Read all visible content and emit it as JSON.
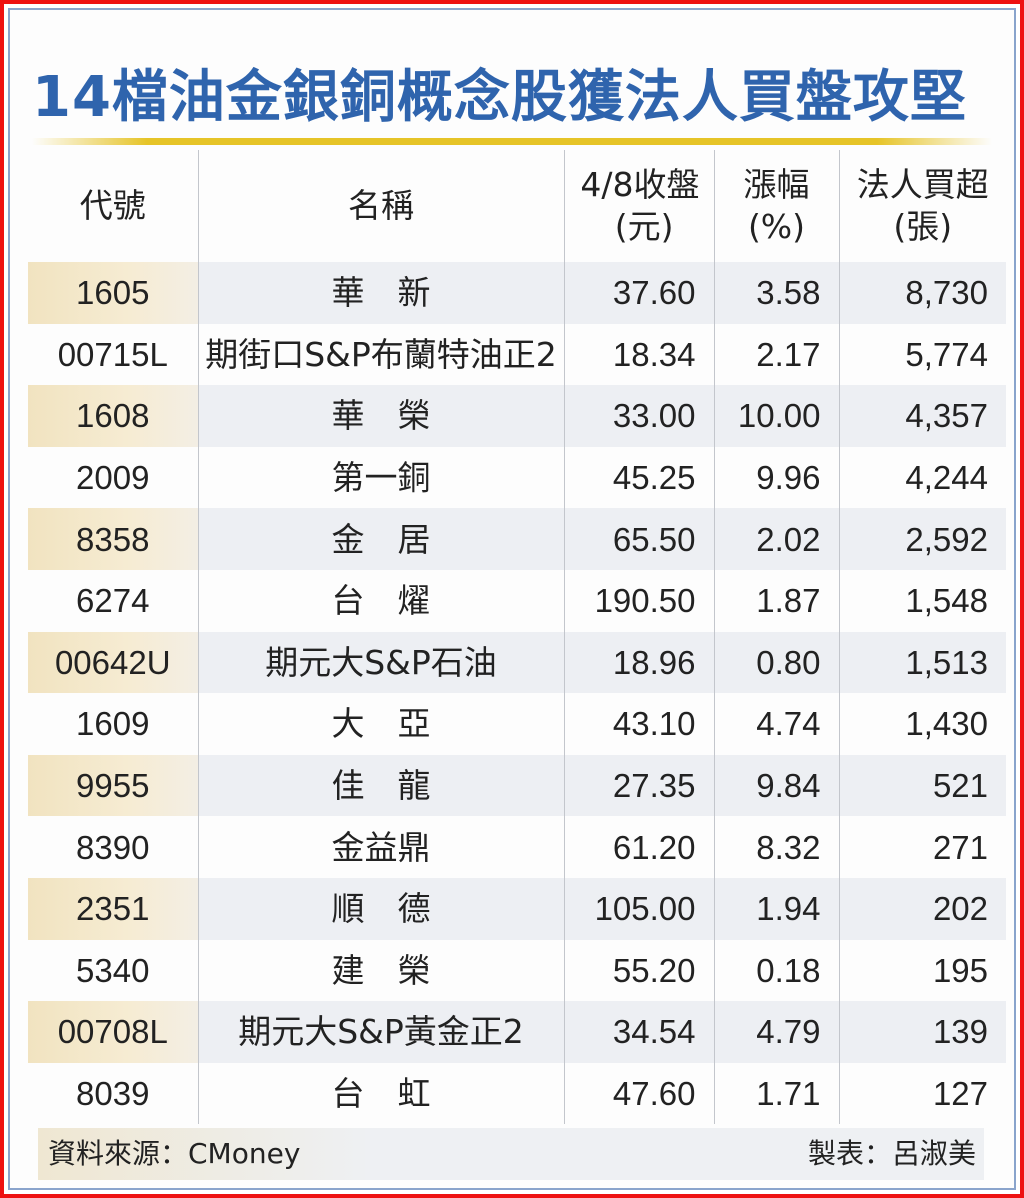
{
  "title": "14檔油金銀銅概念股獲法人買盤攻堅",
  "table": {
    "headers": [
      {
        "line1": "代號",
        "line2": ""
      },
      {
        "line1": "名稱",
        "line2": ""
      },
      {
        "line1": "4/8收盤",
        "line2": "(元)"
      },
      {
        "line1": "漲幅",
        "line2": "(%)"
      },
      {
        "line1": "法人買超",
        "line2": "(張)"
      }
    ],
    "rows": [
      {
        "code": "1605",
        "name": "華　新",
        "close": "37.60",
        "change": "3.58",
        "net_buy": "8,730"
      },
      {
        "code": "00715L",
        "name": "期街口S&P布蘭特油正2",
        "close": "18.34",
        "change": "2.17",
        "net_buy": "5,774"
      },
      {
        "code": "1608",
        "name": "華　榮",
        "close": "33.00",
        "change": "10.00",
        "net_buy": "4,357"
      },
      {
        "code": "2009",
        "name": "第一銅",
        "close": "45.25",
        "change": "9.96",
        "net_buy": "4,244"
      },
      {
        "code": "8358",
        "name": "金　居",
        "close": "65.50",
        "change": "2.02",
        "net_buy": "2,592"
      },
      {
        "code": "6274",
        "name": "台　燿",
        "close": "190.50",
        "change": "1.87",
        "net_buy": "1,548"
      },
      {
        "code": "00642U",
        "name": "期元大S&P石油",
        "close": "18.96",
        "change": "0.80",
        "net_buy": "1,513"
      },
      {
        "code": "1609",
        "name": "大　亞",
        "close": "43.10",
        "change": "4.74",
        "net_buy": "1,430"
      },
      {
        "code": "9955",
        "name": "佳　龍",
        "close": "27.35",
        "change": "9.84",
        "net_buy": "521"
      },
      {
        "code": "8390",
        "name": "金益鼎",
        "close": "61.20",
        "change": "8.32",
        "net_buy": "271"
      },
      {
        "code": "2351",
        "name": "順　德",
        "close": "105.00",
        "change": "1.94",
        "net_buy": "202"
      },
      {
        "code": "5340",
        "name": "建　榮",
        "close": "55.20",
        "change": "0.18",
        "net_buy": "195"
      },
      {
        "code": "00708L",
        "name": "期元大S&P黃金正2",
        "close": "34.54",
        "change": "4.79",
        "net_buy": "139"
      },
      {
        "code": "8039",
        "name": "台　虹",
        "close": "47.60",
        "change": "1.71",
        "net_buy": "127"
      }
    ]
  },
  "footer": {
    "source": "資料來源：CMoney",
    "credit": "製表：呂淑美"
  },
  "colors": {
    "title": "#2f64ad",
    "gold_rule": "#e6c428",
    "frame_red": "#ee1111",
    "frame_blue": "#8aa4cc",
    "row_shade": "#edeff3",
    "code_shade": "#f1e3c0"
  },
  "chart_data": {
    "type": "table",
    "title": "14檔油金銀銅概念股獲法人買盤攻堅",
    "columns": [
      "代號",
      "名稱",
      "4/8收盤(元)",
      "漲幅(%)",
      "法人買超(張)"
    ],
    "rows": [
      [
        "1605",
        "華新",
        37.6,
        3.58,
        8730
      ],
      [
        "00715L",
        "期街口S&P布蘭特油正2",
        18.34,
        2.17,
        5774
      ],
      [
        "1608",
        "華榮",
        33.0,
        10.0,
        4357
      ],
      [
        "2009",
        "第一銅",
        45.25,
        9.96,
        4244
      ],
      [
        "8358",
        "金居",
        65.5,
        2.02,
        2592
      ],
      [
        "6274",
        "台燿",
        190.5,
        1.87,
        1548
      ],
      [
        "00642U",
        "期元大S&P石油",
        18.96,
        0.8,
        1513
      ],
      [
        "1609",
        "大亞",
        43.1,
        4.74,
        1430
      ],
      [
        "9955",
        "佳龍",
        27.35,
        9.84,
        521
      ],
      [
        "8390",
        "金益鼎",
        61.2,
        8.32,
        271
      ],
      [
        "2351",
        "順德",
        105.0,
        1.94,
        202
      ],
      [
        "5340",
        "建榮",
        55.2,
        0.18,
        195
      ],
      [
        "00708L",
        "期元大S&P黃金正2",
        34.54,
        4.79,
        139
      ],
      [
        "8039",
        "台虹",
        47.6,
        1.71,
        127
      ]
    ],
    "source": "CMoney",
    "credit": "呂淑美"
  }
}
